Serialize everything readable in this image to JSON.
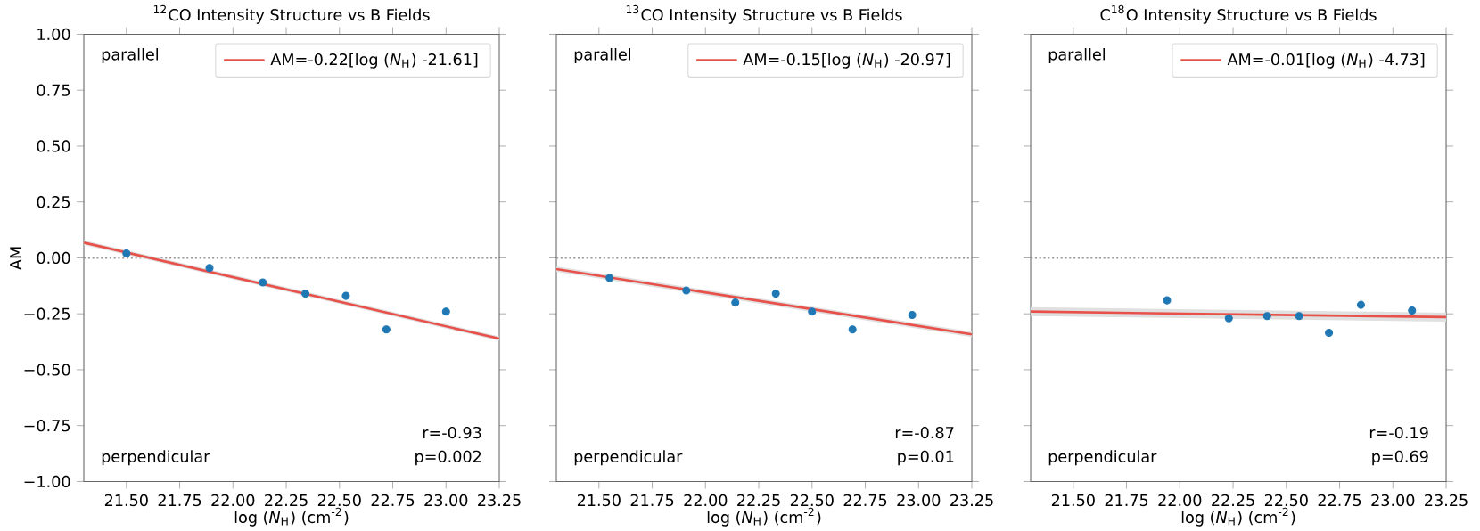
{
  "chart_data": [
    {
      "type": "scatter",
      "title": "$^{12}$CO Intensity Structure vs B Fields",
      "xlabel": "log (*N*$_{H}$) (cm$^{-2}$)",
      "ylabel": "AM",
      "xlim": [
        21.3,
        23.25
      ],
      "ylim": [
        -1.0,
        1.0
      ],
      "xticks": [
        {
          "value": 21.5,
          "label": "21.50"
        },
        {
          "value": 21.75,
          "label": "21.75"
        },
        {
          "value": 22.0,
          "label": "22.00"
        },
        {
          "value": 22.25,
          "label": "22.25"
        },
        {
          "value": 22.5,
          "label": "22.50"
        },
        {
          "value": 22.75,
          "label": "22.75"
        },
        {
          "value": 23.0,
          "label": "23.00"
        },
        {
          "value": 23.25,
          "label": "23.25"
        }
      ],
      "yticks": [
        {
          "value": -1.0,
          "label": "−1.00"
        },
        {
          "value": -0.75,
          "label": "−0.75"
        },
        {
          "value": -0.5,
          "label": "−0.50"
        },
        {
          "value": -0.25,
          "label": "−0.25"
        },
        {
          "value": 0.0,
          "label": "0.00"
        },
        {
          "value": 0.25,
          "label": "0.25"
        },
        {
          "value": 0.5,
          "label": "0.50"
        },
        {
          "value": 0.75,
          "label": "0.75"
        },
        {
          "value": 1.0,
          "label": "1.00"
        }
      ],
      "series": [
        {
          "type": "line",
          "name": "AM=-0.22[log (*N*$_{H}$) -21.61]",
          "color": "#e8504a",
          "x": [
            21.3,
            23.25
          ],
          "values": [
            0.068,
            -0.361
          ],
          "lower": [
            0.058,
            -0.371
          ],
          "upper": [
            0.078,
            -0.351
          ]
        },
        {
          "type": "scatter",
          "color": "#1f77b4",
          "x": [
            21.5,
            21.89,
            22.14,
            22.34,
            22.53,
            22.72,
            23.0
          ],
          "values": [
            0.02,
            -0.045,
            -0.11,
            -0.16,
            -0.17,
            -0.32,
            -0.24
          ],
          "errors": [
            0.015,
            0.015,
            0.015,
            0.015,
            0.015,
            0.015,
            0.015
          ]
        }
      ],
      "ref_lines": [
        {
          "axis": "y",
          "value": 0,
          "color": "#999999",
          "line_style": "dotted"
        }
      ],
      "legend": "top right",
      "annotations": [
        "parallel",
        "perpendicular",
        "r=-0.93",
        "p=0.002"
      ]
    },
    {
      "type": "scatter",
      "title": "$^{13}$CO Intensity Structure vs B Fields",
      "xlabel": "log (*N*$_{H}$) (cm$^{-2}$)",
      "xlim": [
        21.3,
        23.25
      ],
      "ylim": [
        -1.0,
        1.0
      ],
      "xticks": [
        {
          "value": 21.5,
          "label": "21.50"
        },
        {
          "value": 21.75,
          "label": "21.75"
        },
        {
          "value": 22.0,
          "label": "22.00"
        },
        {
          "value": 22.25,
          "label": "22.25"
        },
        {
          "value": 22.5,
          "label": "22.50"
        },
        {
          "value": 22.75,
          "label": "22.75"
        },
        {
          "value": 23.0,
          "label": "23.00"
        },
        {
          "value": 23.25,
          "label": "23.25"
        }
      ],
      "yticks": [
        {
          "value": -1.0,
          "label": null
        },
        {
          "value": -0.75,
          "label": null
        },
        {
          "value": -0.5,
          "label": null
        },
        {
          "value": -0.25,
          "label": null
        },
        {
          "value": 0.0,
          "label": null
        },
        {
          "value": 0.25,
          "label": null
        },
        {
          "value": 0.5,
          "label": null
        },
        {
          "value": 0.75,
          "label": null
        },
        {
          "value": 1.0,
          "label": null
        }
      ],
      "tick_labels": "x",
      "series": [
        {
          "type": "line",
          "name": "AM=-0.15[log (*N*$_{H}$) -20.97]",
          "color": "#e8504a",
          "x": [
            21.3,
            23.25
          ],
          "values": [
            -0.05,
            -0.342
          ],
          "lower": [
            -0.062,
            -0.354
          ],
          "upper": [
            -0.038,
            -0.33
          ]
        },
        {
          "type": "scatter",
          "color": "#1f77b4",
          "x": [
            21.55,
            21.91,
            22.14,
            22.33,
            22.5,
            22.69,
            22.97
          ],
          "values": [
            -0.09,
            -0.146,
            -0.2,
            -0.16,
            -0.24,
            -0.32,
            -0.255
          ],
          "errors": [
            0.015,
            0.015,
            0.015,
            0.015,
            0.015,
            0.015,
            0.015
          ]
        }
      ],
      "ref_lines": [
        {
          "axis": "y",
          "value": 0,
          "color": "#999999",
          "line_style": "dotted"
        }
      ],
      "legend": "top right",
      "annotations": [
        "parallel",
        "perpendicular",
        "r=-0.87",
        "p=0.01"
      ]
    },
    {
      "type": "scatter",
      "title": "C$^{18}$O Intensity Structure vs B Fields",
      "xlabel": "log (*N*$_{H}$) (cm$^{-2}$)",
      "xlim": [
        21.3,
        23.25
      ],
      "ylim": [
        -1.0,
        1.0
      ],
      "xticks": [
        {
          "value": 21.5,
          "label": "21.50"
        },
        {
          "value": 21.75,
          "label": "21.75"
        },
        {
          "value": 22.0,
          "label": "22.00"
        },
        {
          "value": 22.25,
          "label": "22.25"
        },
        {
          "value": 22.5,
          "label": "22.50"
        },
        {
          "value": 22.75,
          "label": "22.75"
        },
        {
          "value": 23.0,
          "label": "23.00"
        },
        {
          "value": 23.25,
          "label": "23.25"
        }
      ],
      "yticks": [
        {
          "value": -1.0,
          "label": null
        },
        {
          "value": -0.75,
          "label": null
        },
        {
          "value": -0.5,
          "label": null
        },
        {
          "value": -0.25,
          "label": null
        },
        {
          "value": 0.0,
          "label": null
        },
        {
          "value": 0.25,
          "label": null
        },
        {
          "value": 0.5,
          "label": null
        },
        {
          "value": 0.75,
          "label": null
        },
        {
          "value": 1.0,
          "label": null
        }
      ],
      "tick_labels": "x",
      "series": [
        {
          "type": "line",
          "name": "AM=-0.01[log (*N*$_{H}$) -4.73]",
          "color": "#e8504a",
          "x": [
            21.3,
            23.25
          ],
          "values": [
            -0.24,
            -0.265
          ],
          "lower": [
            -0.26,
            -0.285
          ],
          "upper": [
            -0.22,
            -0.245
          ]
        },
        {
          "type": "scatter",
          "color": "#1f77b4",
          "x": [
            21.94,
            22.23,
            22.41,
            22.56,
            22.7,
            22.85,
            23.09
          ],
          "values": [
            -0.19,
            -0.27,
            -0.26,
            -0.26,
            -0.335,
            -0.21,
            -0.235
          ],
          "errors": [
            0.015,
            0.015,
            0.015,
            0.015,
            0.015,
            0.015,
            0.015
          ]
        }
      ],
      "ref_lines": [
        {
          "axis": "y",
          "value": 0,
          "color": "#999999",
          "line_style": "dotted"
        }
      ],
      "legend": "top right",
      "annotations": [
        "parallel",
        "perpendicular",
        "r=-0.19",
        "p=0.69"
      ]
    }
  ]
}
